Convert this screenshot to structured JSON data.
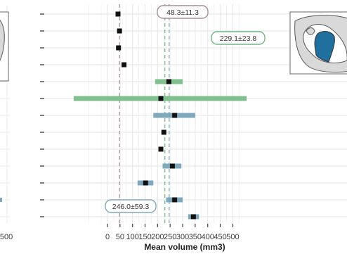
{
  "chart_data": {
    "type": "forest",
    "xlabel": "Mean volume (mm3)",
    "xlim": [
      -140,
      560
    ],
    "x_ticks": [
      0,
      50,
      100,
      150,
      200,
      250,
      300,
      350,
      400,
      450,
      500
    ],
    "rows": [
      {
        "mean": 42,
        "lo": 37,
        "hi": 47,
        "color": "#8c8c8c"
      },
      {
        "mean": 48,
        "lo": 44,
        "hi": 52,
        "color": "#8c8c8c"
      },
      {
        "mean": 44,
        "lo": 39,
        "hi": 49,
        "color": "#8c8c8c"
      },
      {
        "mean": 66,
        "lo": 61,
        "hi": 72,
        "color": "#8c8c8c"
      },
      {
        "mean": 245,
        "lo": 190,
        "hi": 300,
        "color": "#80c08e"
      },
      {
        "mean": 213,
        "lo": -135,
        "hi": 555,
        "color": "#80c08e"
      },
      {
        "mean": 268,
        "lo": 183,
        "hi": 350,
        "color": "#7fa8bc"
      },
      {
        "mean": 225,
        "lo": 221,
        "hi": 230,
        "color": "#8c8c8c"
      },
      {
        "mean": 213,
        "lo": 209,
        "hi": 217,
        "color": "#8c8c8c"
      },
      {
        "mean": 259,
        "lo": 220,
        "hi": 295,
        "color": "#7fa8bc"
      },
      {
        "mean": 152,
        "lo": 120,
        "hi": 183,
        "color": "#7fa8bc"
      },
      {
        "mean": 268,
        "lo": 234,
        "hi": 300,
        "color": "#7fa8bc"
      },
      {
        "mean": 343,
        "lo": 322,
        "hi": 365,
        "color": "#7fa8bc"
      }
    ],
    "reference_lines": [
      {
        "x": 48.3,
        "label": "48.3±11.3",
        "color": "#a88e98"
      },
      {
        "x": 229.1,
        "label": "229.1±23.8",
        "color": "#6fb784"
      },
      {
        "x": 246.0,
        "label": "246.0±59.3",
        "color": "#7fa8bc"
      }
    ],
    "grid": true
  },
  "left_panel": {
    "x_ticks": [
      "500"
    ]
  },
  "colors": {
    "highlight_region": "#1f6f9f",
    "brain_outline": "#555555",
    "grid": "#e6e6e6"
  }
}
